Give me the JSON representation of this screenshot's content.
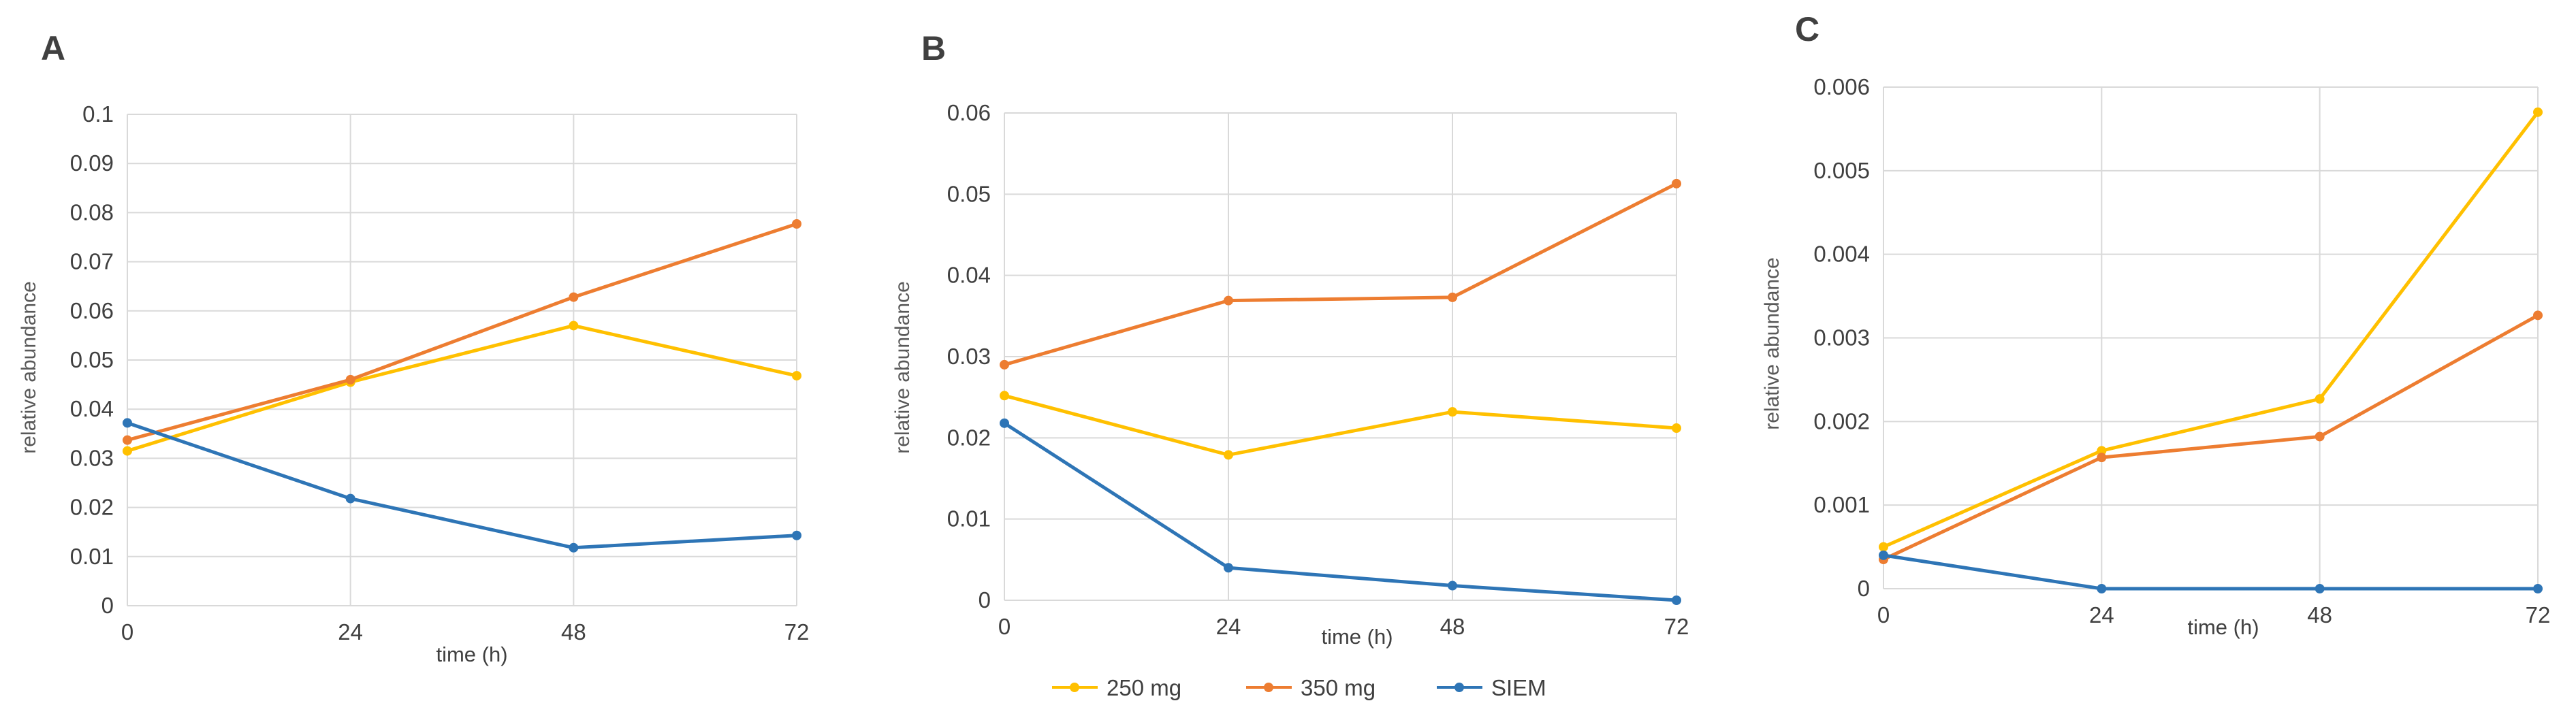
{
  "colors": {
    "250 mg": "#FFC000",
    "350 mg": "#ED7D31",
    "SIEM": "#2E75B6"
  },
  "legend": {
    "entries": [
      "250 mg",
      "350 mg",
      "SIEM"
    ]
  },
  "chart_data": [
    {
      "type": "line",
      "panel": "A",
      "title": "",
      "xlabel": "time (h)",
      "ylabel": "relative abundance",
      "x": [
        0,
        24,
        48,
        72
      ],
      "x_tick_labels": [
        "0",
        "24",
        "48",
        "72"
      ],
      "ylim": [
        0,
        0.1
      ],
      "y_ticks": [
        0,
        0.01,
        0.02,
        0.03,
        0.04,
        0.05,
        0.06,
        0.07,
        0.08,
        0.09,
        0.1
      ],
      "y_tick_labels": [
        "0",
        "0.01",
        "0.02",
        "0.03",
        "0.04",
        "0.05",
        "0.06",
        "0.07",
        "0.08",
        "0.09",
        "0.1"
      ],
      "series": [
        {
          "name": "250 mg",
          "values": [
            0.0315,
            0.0455,
            0.057,
            0.0468
          ]
        },
        {
          "name": "350 mg",
          "values": [
            0.0337,
            0.046,
            0.0628,
            0.0777
          ]
        },
        {
          "name": "SIEM",
          "values": [
            0.0372,
            0.0218,
            0.0118,
            0.0143
          ]
        }
      ]
    },
    {
      "type": "line",
      "panel": "B",
      "title": "",
      "xlabel": "time (h)",
      "ylabel": "relative abundance",
      "x": [
        0,
        24,
        48,
        72
      ],
      "x_tick_labels": [
        "0",
        "24",
        "48",
        "72"
      ],
      "ylim": [
        0,
        0.06
      ],
      "y_ticks": [
        0,
        0.01,
        0.02,
        0.03,
        0.04,
        0.05,
        0.06
      ],
      "y_tick_labels": [
        "0",
        "0.01",
        "0.02",
        "0.03",
        "0.04",
        "0.05",
        "0.06"
      ],
      "series": [
        {
          "name": "250 mg",
          "values": [
            0.0252,
            0.0179,
            0.0232,
            0.0212
          ]
        },
        {
          "name": "350 mg",
          "values": [
            0.029,
            0.0369,
            0.0373,
            0.0513
          ]
        },
        {
          "name": "SIEM",
          "values": [
            0.0218,
            0.004,
            0.0018,
            0.0
          ]
        }
      ]
    },
    {
      "type": "line",
      "panel": "C",
      "title": "",
      "xlabel": "time (h)",
      "ylabel": "relative abundance",
      "x": [
        0,
        24,
        48,
        72
      ],
      "x_tick_labels": [
        "0",
        "24",
        "48",
        "72"
      ],
      "ylim": [
        0,
        0.006
      ],
      "y_ticks": [
        0,
        0.001,
        0.002,
        0.003,
        0.004,
        0.005,
        0.006
      ],
      "y_tick_labels": [
        "0",
        "0.001",
        "0.002",
        "0.003",
        "0.004",
        "0.005",
        "0.006"
      ],
      "series": [
        {
          "name": "250 mg",
          "values": [
            0.0005,
            0.00165,
            0.00227,
            0.0057
          ]
        },
        {
          "name": "350 mg",
          "values": [
            0.00035,
            0.00157,
            0.00182,
            0.00327
          ]
        },
        {
          "name": "SIEM",
          "values": [
            0.0004,
            0.0,
            0.0,
            0.0
          ]
        }
      ]
    }
  ]
}
